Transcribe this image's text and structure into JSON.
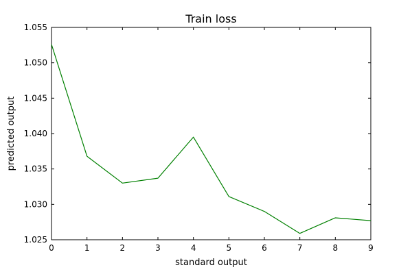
{
  "chart_data": {
    "type": "line",
    "title": "Train loss",
    "xlabel": "standard output",
    "ylabel": "predicted output",
    "xlim": [
      0,
      9
    ],
    "ylim": [
      1.025,
      1.055
    ],
    "xticks": [
      0,
      1,
      2,
      3,
      4,
      5,
      6,
      7,
      8,
      9
    ],
    "yticks": [
      1.025,
      1.03,
      1.035,
      1.04,
      1.045,
      1.05,
      1.055
    ],
    "ytick_labels": [
      "1.025",
      "1.030",
      "1.035",
      "1.040",
      "1.045",
      "1.050",
      "1.055"
    ],
    "grid": false,
    "legend": "none",
    "series": [
      {
        "color": "#008000",
        "x": [
          0,
          1,
          2,
          3,
          4,
          5,
          6,
          7,
          8,
          9
        ],
        "y": [
          1.0526,
          1.0368,
          1.033,
          1.0337,
          1.0395,
          1.0311,
          1.029,
          1.0259,
          1.0281,
          1.0277
        ]
      }
    ]
  }
}
